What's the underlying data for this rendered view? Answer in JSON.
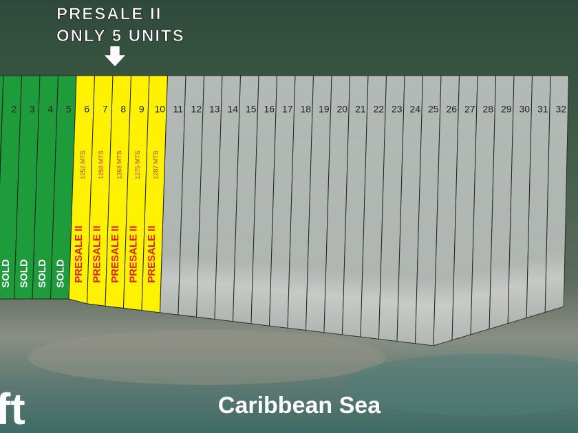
{
  "header": {
    "line1": "PRESALE II",
    "line2": "ONLY 5 UNITS"
  },
  "lots": [
    {
      "number": 2,
      "status": "SOLD"
    },
    {
      "number": 3,
      "status": "SOLD"
    },
    {
      "number": 4,
      "status": "SOLD"
    },
    {
      "number": 5,
      "status": "SOLD"
    },
    {
      "number": 6,
      "status": "PRESALE II",
      "area": "1252 MTS"
    },
    {
      "number": 7,
      "status": "PRESALE II",
      "area": "1258 MTS"
    },
    {
      "number": 8,
      "status": "PRESALE II",
      "area": "1263 MTS"
    },
    {
      "number": 9,
      "status": "PRESALE II",
      "area": "1275 MTS"
    },
    {
      "number": 10,
      "status": "PRESALE II",
      "area": "1287 MTS"
    },
    {
      "number": 11
    },
    {
      "number": 12
    },
    {
      "number": 13
    },
    {
      "number": 14
    },
    {
      "number": 15
    },
    {
      "number": 16
    },
    {
      "number": 17
    },
    {
      "number": 18
    },
    {
      "number": 19
    },
    {
      "number": 20
    },
    {
      "number": 21
    },
    {
      "number": 22
    },
    {
      "number": 23
    },
    {
      "number": 24
    },
    {
      "number": 25
    },
    {
      "number": 26
    },
    {
      "number": 27
    },
    {
      "number": 28
    },
    {
      "number": 29
    },
    {
      "number": 30
    },
    {
      "number": 31
    },
    {
      "number": 32
    }
  ],
  "sea_label": "Caribbean Sea",
  "corner_text": "ft"
}
